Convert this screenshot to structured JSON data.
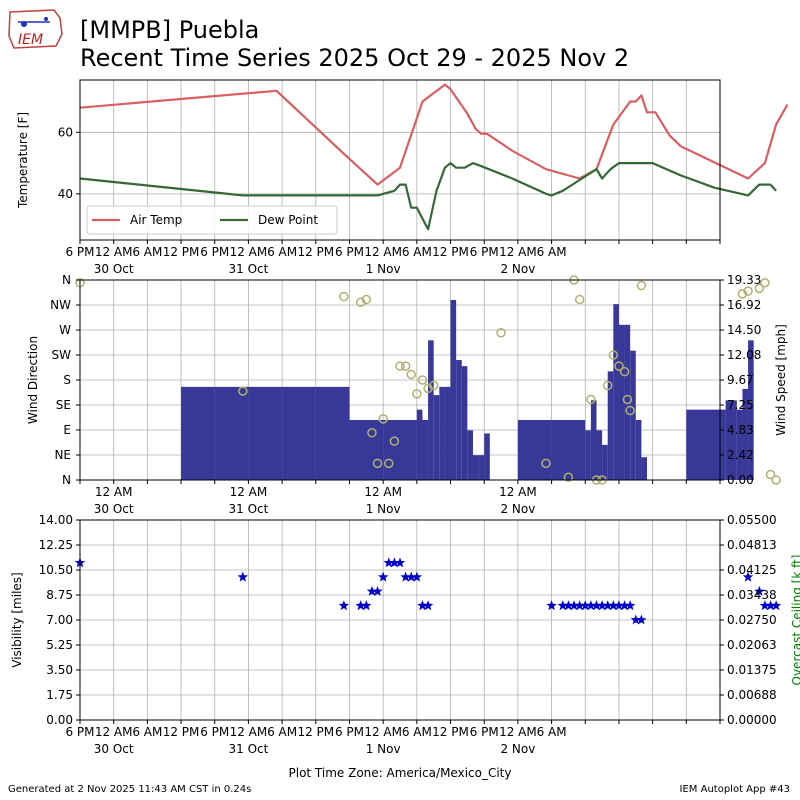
{
  "header": {
    "logo_text": "IEM",
    "title_line1": "[MMPB] Puebla",
    "title_line2": "Recent Time Series 2025 Oct 29 - 2025 Nov 2"
  },
  "footer": {
    "generated": "Generated at 2 Nov 2025 11:43 AM CST in 0.24s",
    "app": "IEM Autoplot App #43"
  },
  "colors": {
    "air_temp": "#d95f63",
    "dew_point": "#356835",
    "wind_speed_bar": "#383898",
    "wind_dir_marker": "#b0b070",
    "visibility_marker": "#0000cc",
    "ceiling_axis_label": "#008000",
    "grid": "#b0b0b0"
  },
  "chart_data": [
    {
      "type": "line",
      "panel": "temperature",
      "ylabel": "Temperature [F]",
      "ylim": [
        25,
        77
      ],
      "yticks": [
        40,
        60
      ],
      "x_range_hours": [
        -6,
        108
      ],
      "x_origin": "2025-10-30 00:00",
      "grid": true,
      "legend_position": "lower-left",
      "series": [
        {
          "name": "Air Temp",
          "points": [
            [
              -6,
              68
            ],
            [
              29,
              73.5
            ],
            [
              41,
              53
            ],
            [
              47,
              43
            ],
            [
              51,
              48.5
            ],
            [
              55,
              70
            ],
            [
              59,
              75.5
            ],
            [
              60,
              74
            ],
            [
              63,
              66
            ],
            [
              64.5,
              61
            ],
            [
              65.5,
              59.5
            ],
            [
              66.5,
              59.5
            ],
            [
              71,
              54
            ],
            [
              77,
              48
            ],
            [
              83,
              45
            ],
            [
              86,
              48
            ],
            [
              89,
              62.5
            ],
            [
              92,
              70
            ],
            [
              93,
              70
            ],
            [
              94,
              72
            ],
            [
              95,
              66.5
            ],
            [
              96.5,
              66.5
            ],
            [
              99,
              59
            ],
            [
              101,
              55.5
            ],
            [
              113,
              45
            ],
            [
              116,
              50
            ],
            [
              118,
              62.5
            ],
            [
              120,
              69
            ]
          ]
        },
        {
          "name": "Dew Point",
          "points": [
            [
              -6,
              45
            ],
            [
              23,
              39.5
            ],
            [
              29,
              39.5
            ],
            [
              41,
              39.5
            ],
            [
              47,
              39.5
            ],
            [
              50,
              41
            ],
            [
              51,
              43
            ],
            [
              52,
              43
            ],
            [
              53,
              35.5
            ],
            [
              54,
              35.5
            ],
            [
              56,
              28.5
            ],
            [
              57.5,
              41
            ],
            [
              59,
              48.5
            ],
            [
              60,
              50
            ],
            [
              61,
              48.5
            ],
            [
              62.5,
              48.5
            ],
            [
              64,
              50
            ],
            [
              65.5,
              49
            ],
            [
              71,
              45
            ],
            [
              77,
              40
            ],
            [
              78,
              39.5
            ],
            [
              80,
              41
            ],
            [
              83,
              44.5
            ],
            [
              86,
              48
            ],
            [
              87,
              45
            ],
            [
              88.5,
              48
            ],
            [
              90,
              50
            ],
            [
              96,
              50
            ],
            [
              101,
              46
            ],
            [
              107,
              42
            ],
            [
              113,
              39.5
            ],
            [
              115,
              43
            ],
            [
              117,
              43
            ],
            [
              118,
              41
            ]
          ]
        }
      ],
      "xtick_labels": [
        "6 PM",
        "12 AM",
        "6 AM",
        "12 PM",
        "6 PM",
        "12 AM",
        "6 AM",
        "12 PM",
        "6 PM",
        "12 AM",
        "6 AM",
        "12 PM",
        "6 PM",
        "12 AM",
        "6 AM"
      ],
      "date_labels": [
        "30 Oct",
        "31 Oct",
        "1 Nov",
        "2 Nov"
      ]
    },
    {
      "type": "bar",
      "panel": "wind",
      "ylabel_left": "Wind Direction",
      "ylabel_right": "Wind Speed [mph]",
      "direction_ticks": [
        "N",
        "NE",
        "E",
        "SE",
        "S",
        "SW",
        "W",
        "NW",
        "N"
      ],
      "speed_ticks": [
        "0.00",
        "2.42",
        "4.83",
        "7.25",
        "9.67",
        "12.08",
        "14.50",
        "16.92",
        "19.33"
      ],
      "speed_range": [
        0,
        19.33
      ],
      "direction_range_deg": [
        0,
        360
      ],
      "wind_speed_bars": [
        [
          12,
          18,
          9.0
        ],
        [
          18,
          24,
          9.0
        ],
        [
          24,
          30,
          9.0
        ],
        [
          30,
          36,
          9.0
        ],
        [
          36,
          42,
          9.0
        ],
        [
          42,
          48,
          5.8
        ],
        [
          48,
          54,
          5.8
        ],
        [
          54,
          55,
          6.8
        ],
        [
          55,
          56,
          5.8
        ],
        [
          56,
          57,
          13.5
        ],
        [
          57,
          58,
          8.2
        ],
        [
          58,
          59,
          9.0
        ],
        [
          59,
          60,
          9.0
        ],
        [
          60,
          61,
          17.4
        ],
        [
          61,
          62,
          11.6
        ],
        [
          62,
          63,
          11.0
        ],
        [
          63,
          64,
          4.8
        ],
        [
          64,
          65,
          2.4
        ],
        [
          65,
          66,
          2.4
        ],
        [
          66,
          67,
          4.5
        ],
        [
          72,
          78,
          5.8
        ],
        [
          78,
          84,
          5.8
        ],
        [
          84,
          85,
          4.8
        ],
        [
          85,
          86,
          7.7
        ],
        [
          86,
          87,
          4.8
        ],
        [
          87,
          88,
          3.4
        ],
        [
          88,
          89,
          10.5
        ],
        [
          89,
          90,
          17.0
        ],
        [
          90,
          91,
          15.0
        ],
        [
          91,
          92,
          15.0
        ],
        [
          92,
          93,
          12.5
        ],
        [
          93,
          94,
          5.8
        ],
        [
          94,
          95,
          2.2
        ],
        [
          102,
          108,
          6.8
        ],
        [
          108,
          109,
          6.8
        ],
        [
          109,
          111,
          7.7
        ],
        [
          111,
          112,
          6.8
        ],
        [
          112,
          113,
          8.8
        ],
        [
          113,
          114,
          13.5
        ]
      ],
      "wind_direction_points": [
        [
          -6,
          355
        ],
        [
          23,
          160
        ],
        [
          41,
          330
        ],
        [
          44,
          320
        ],
        [
          45,
          325
        ],
        [
          46,
          85
        ],
        [
          47,
          30
        ],
        [
          48,
          110
        ],
        [
          49,
          30
        ],
        [
          50,
          70
        ],
        [
          51,
          205
        ],
        [
          52,
          205
        ],
        [
          53,
          190
        ],
        [
          54,
          155
        ],
        [
          55,
          180
        ],
        [
          56,
          165
        ],
        [
          57,
          170
        ],
        [
          69,
          265
        ],
        [
          77,
          30
        ],
        [
          81,
          5
        ],
        [
          82,
          360
        ],
        [
          83,
          325
        ],
        [
          85,
          145
        ],
        [
          86,
          0
        ],
        [
          87,
          0
        ],
        [
          88,
          170
        ],
        [
          89,
          225
        ],
        [
          90,
          205
        ],
        [
          91,
          195
        ],
        [
          91.5,
          145
        ],
        [
          92,
          125
        ],
        [
          94,
          350
        ],
        [
          112,
          335
        ],
        [
          113,
          340
        ],
        [
          115,
          345
        ],
        [
          116,
          355
        ],
        [
          117,
          10
        ],
        [
          118,
          0
        ]
      ]
    },
    {
      "type": "scatter",
      "panel": "visibility",
      "ylabel_left": "Visibility [miles]",
      "ylabel_right": "Overcast Ceiling [k ft]",
      "ylim": [
        0,
        14
      ],
      "yticks_left": [
        "0.00",
        "1.75",
        "3.50",
        "5.25",
        "7.00",
        "8.75",
        "10.50",
        "12.25",
        "14.00"
      ],
      "yticks_right": [
        "0.00000",
        "0.00688",
        "0.01375",
        "0.02063",
        "0.02750",
        "0.03438",
        "0.04125",
        "0.04813",
        "0.05500"
      ],
      "xlabel": "Plot Time Zone: America/Mexico_City",
      "points": [
        [
          -6,
          11
        ],
        [
          23,
          10
        ],
        [
          41,
          8
        ],
        [
          44,
          8
        ],
        [
          45,
          8
        ],
        [
          46,
          9
        ],
        [
          47,
          9
        ],
        [
          48,
          10
        ],
        [
          49,
          11
        ],
        [
          50,
          11
        ],
        [
          51,
          11
        ],
        [
          52,
          10
        ],
        [
          53,
          10
        ],
        [
          54,
          10
        ],
        [
          55,
          8
        ],
        [
          56,
          8
        ],
        [
          78,
          8
        ],
        [
          80,
          8
        ],
        [
          81,
          8
        ],
        [
          82,
          8
        ],
        [
          83,
          8
        ],
        [
          84,
          8
        ],
        [
          85,
          8
        ],
        [
          86,
          8
        ],
        [
          87,
          8
        ],
        [
          88,
          8
        ],
        [
          89,
          8
        ],
        [
          90,
          8
        ],
        [
          91,
          8
        ],
        [
          92,
          8
        ],
        [
          93,
          7
        ],
        [
          94,
          7
        ],
        [
          113,
          10
        ],
        [
          115,
          9
        ],
        [
          116,
          8
        ],
        [
          117,
          8
        ],
        [
          118,
          8
        ]
      ]
    }
  ]
}
